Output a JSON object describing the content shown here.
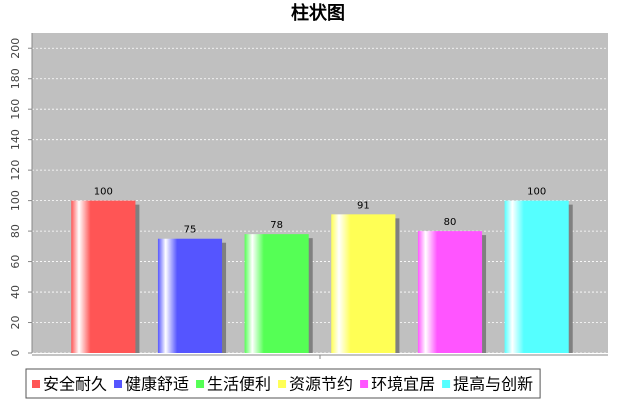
{
  "chart_data": {
    "type": "bar",
    "title": "柱状图",
    "categories": [
      null
    ],
    "series": [
      {
        "name": "安全耐久",
        "color": "#ff5555",
        "values": [
          100
        ]
      },
      {
        "name": "健康舒适",
        "color": "#5555ff",
        "values": [
          75
        ]
      },
      {
        "name": "生活便利",
        "color": "#55ff55",
        "values": [
          78
        ]
      },
      {
        "name": "资源节约",
        "color": "#ffff55",
        "values": [
          91
        ]
      },
      {
        "name": "环境宜居",
        "color": "#ff55ff",
        "values": [
          80
        ]
      },
      {
        "name": "提高与创新",
        "color": "#55ffff",
        "values": [
          100
        ]
      }
    ],
    "ylim": [
      0,
      210
    ],
    "yticks": [
      0,
      20,
      40,
      60,
      80,
      100,
      120,
      140,
      160,
      180,
      200
    ],
    "grid": true,
    "legend": "bottom"
  }
}
